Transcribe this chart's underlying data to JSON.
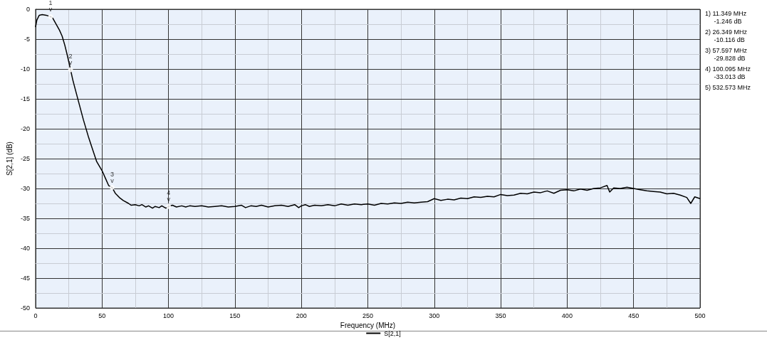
{
  "chart_data": {
    "type": "line",
    "xlabel": "Frequency (MHz)",
    "ylabel": "S[2,1] (dB)",
    "xlim": [
      0,
      500
    ],
    "ylim": [
      -50,
      0
    ],
    "xticks": [
      0,
      {
        "value": 25,
        "label": null
      },
      50,
      {
        "value": 75,
        "label": null
      },
      100,
      {
        "value": 125,
        "label": null
      },
      150,
      {
        "value": 175,
        "label": null
      },
      200,
      {
        "value": 225,
        "label": null
      },
      250,
      {
        "value": 275,
        "label": null
      },
      300,
      {
        "value": 325,
        "label": null
      },
      350,
      {
        "value": 375,
        "label": null
      },
      400,
      {
        "value": 425,
        "label": null
      },
      450,
      {
        "value": 475,
        "label": null
      },
      500
    ],
    "yticks": [
      0,
      {
        "value": -2.5,
        "label": null
      },
      -5,
      {
        "value": -7.5,
        "label": null
      },
      -10,
      {
        "value": -12.5,
        "label": null
      },
      -15,
      {
        "value": -17.5,
        "label": null
      },
      -20,
      {
        "value": -22.5,
        "label": null
      },
      -25,
      {
        "value": -27.5,
        "label": null
      },
      -30,
      {
        "value": -32.5,
        "label": null
      },
      -35,
      {
        "value": -37.5,
        "label": null
      },
      -40,
      {
        "value": -42.5,
        "label": null
      },
      -45,
      {
        "value": -47.5,
        "label": null
      },
      -50
    ],
    "grid": true,
    "legend": "bottom",
    "marker": "none",
    "line_style": "solid",
    "series": [
      {
        "name": "S[2,1]",
        "color": "#000000",
        "x": [
          0,
          1,
          2.8,
          5,
          8,
          11.349,
          13,
          15,
          18,
          20,
          22,
          24,
          26.349,
          28,
          30,
          33,
          36,
          40,
          43,
          46,
          50,
          53,
          55,
          57.597,
          60,
          63,
          66,
          70,
          72,
          75,
          78,
          80,
          83,
          85,
          88,
          90,
          93,
          95,
          98,
          100.095,
          103,
          106,
          110,
          113,
          116,
          120,
          125,
          130,
          135,
          140,
          145,
          150,
          155,
          158,
          162,
          166,
          170,
          175,
          180,
          185,
          190,
          195,
          198,
          200,
          203,
          206,
          210,
          215,
          220,
          225,
          230,
          235,
          240,
          245,
          250,
          255,
          260,
          265,
          270,
          275,
          280,
          285,
          290,
          295,
          300,
          305,
          310,
          315,
          320,
          325,
          330,
          335,
          340,
          345,
          350,
          355,
          360,
          365,
          370,
          375,
          380,
          385,
          390,
          395,
          400,
          405,
          410,
          415,
          420,
          425,
          430,
          432,
          435,
          440,
          445,
          450,
          455,
          460,
          465,
          470,
          475,
          480,
          485,
          490,
          493,
          496,
          500
        ],
        "values": [
          -3,
          -1.8,
          -1,
          -0.9,
          -1,
          -1.246,
          -1.5,
          -2.3,
          -3.5,
          -4.5,
          -6,
          -7.8,
          -10.116,
          -11.8,
          -13.5,
          -16,
          -18.5,
          -21.5,
          -23.5,
          -25.5,
          -27,
          -28.5,
          -29.5,
          -29.828,
          -30.8,
          -31.5,
          -32,
          -32.5,
          -32.8,
          -32.7,
          -32.9,
          -32.7,
          -33.1,
          -32.9,
          -33.3,
          -33,
          -33.2,
          -32.9,
          -33.3,
          -33.013,
          -32.8,
          -33.1,
          -32.9,
          -33.1,
          -32.9,
          -33.0,
          -32.9,
          -33.1,
          -33.0,
          -32.9,
          -33.1,
          -33.0,
          -32.8,
          -33.2,
          -32.9,
          -33.0,
          -32.8,
          -33.1,
          -32.9,
          -32.8,
          -33.0,
          -32.7,
          -33.2,
          -32.9,
          -32.7,
          -33.0,
          -32.8,
          -32.9,
          -32.7,
          -32.9,
          -32.6,
          -32.8,
          -32.6,
          -32.7,
          -32.6,
          -32.8,
          -32.5,
          -32.6,
          -32.4,
          -32.5,
          -32.3,
          -32.4,
          -32.3,
          -32.2,
          -31.7,
          -32.0,
          -31.8,
          -31.9,
          -31.6,
          -31.7,
          -31.4,
          -31.5,
          -31.3,
          -31.4,
          -31.0,
          -31.2,
          -31.1,
          -30.8,
          -30.9,
          -30.6,
          -30.7,
          -30.4,
          -30.8,
          -30.3,
          -30.2,
          -30.4,
          -30.1,
          -30.3,
          -30.0,
          -29.9,
          -29.5,
          -30.6,
          -29.9,
          -30.0,
          -29.8,
          -30.0,
          -30.2,
          -30.4,
          -30.5,
          -30.6,
          -30.9,
          -30.8,
          -31.1,
          -31.5,
          -32.5,
          -31.4,
          -31.7
        ]
      }
    ],
    "annotations": [
      {
        "text": "1\nv",
        "x": 11.349,
        "y": -1.246
      },
      {
        "text": "2\nv",
        "x": 26.349,
        "y": -10.116
      },
      {
        "text": "3\nv",
        "x": 57.597,
        "y": -29.828
      },
      {
        "text": "4\nv",
        "x": 100.095,
        "y": -33.013
      },
      "1) 11.349 MHz\n     -1.246 dB",
      "2) 26.349 MHz\n     -10.116 dB",
      "3) 57.597 MHz\n     -29.828 dB",
      "4) 100.095 MHz\n     -33.013 dB",
      "5) 532.573 MHz"
    ]
  }
}
